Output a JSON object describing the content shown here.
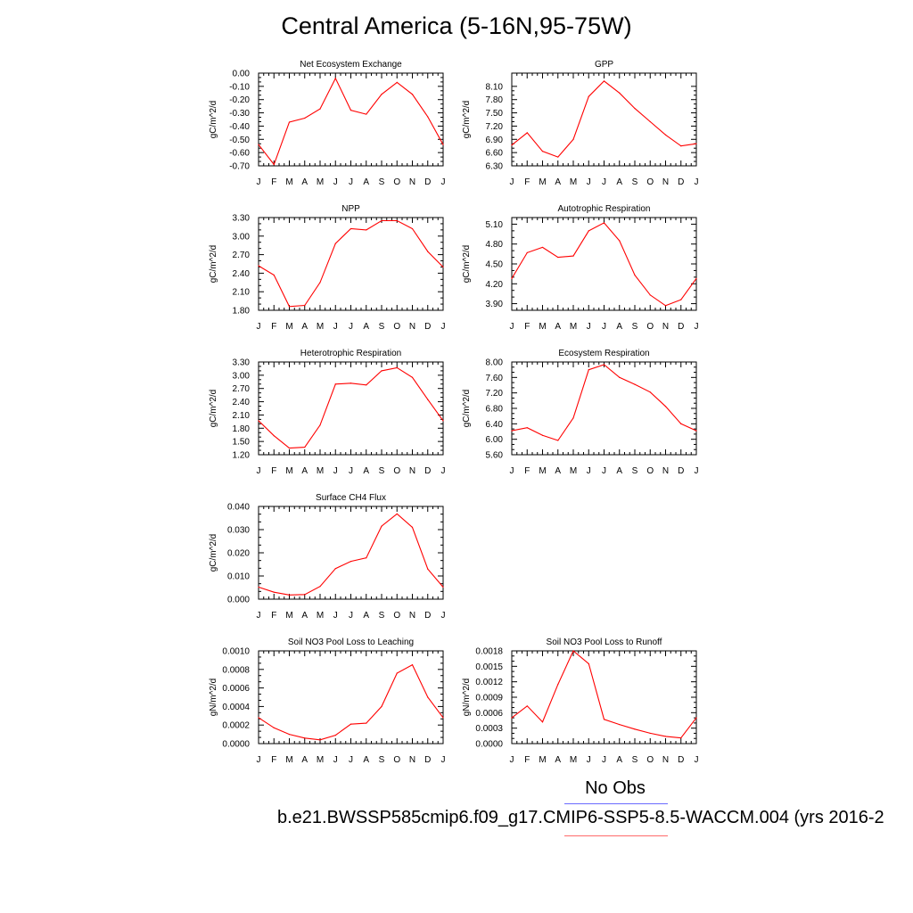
{
  "title": "Central America (5-16N,95-75W)",
  "legend": {
    "obs_label": "No Obs",
    "model_label": "b.e21.BWSSP585cmip6.f09_g17.CMIP6-SSP5-8.5-WACCM.004 (yrs 2016-2",
    "obs_color": "#5a5aff",
    "model_color": "#ff0000"
  },
  "chart_data": [
    {
      "type": "line",
      "title": "Net Ecosystem Exchange",
      "ylabel": "gC/m^2/d",
      "categories": [
        "J",
        "F",
        "M",
        "A",
        "M",
        "J",
        "J",
        "A",
        "S",
        "O",
        "N",
        "D",
        "J"
      ],
      "ylim": [
        -0.7,
        0.0
      ],
      "yticks": [
        "0.00",
        "-0.10",
        "-0.20",
        "-0.30",
        "-0.40",
        "-0.50",
        "-0.60",
        "-0.70"
      ],
      "series": [
        {
          "name": "model",
          "color": "#ff0000",
          "values": [
            -0.54,
            -0.69,
            -0.37,
            -0.34,
            -0.27,
            -0.04,
            -0.28,
            -0.31,
            -0.16,
            -0.07,
            -0.16,
            -0.33,
            -0.54
          ]
        }
      ]
    },
    {
      "type": "line",
      "title": "GPP",
      "ylabel": "gC/m^2/d",
      "categories": [
        "J",
        "F",
        "M",
        "A",
        "M",
        "J",
        "J",
        "A",
        "S",
        "O",
        "N",
        "D",
        "J"
      ],
      "ylim": [
        6.3,
        8.4
      ],
      "yticks": [
        "8.10",
        "7.80",
        "7.50",
        "7.20",
        "6.90",
        "6.60",
        "6.30"
      ],
      "series": [
        {
          "name": "model",
          "color": "#ff0000",
          "values": [
            6.77,
            7.05,
            6.63,
            6.5,
            6.9,
            7.87,
            8.22,
            7.95,
            7.6,
            7.3,
            7.0,
            6.75,
            6.8
          ]
        }
      ]
    },
    {
      "type": "line",
      "title": "NPP",
      "ylabel": "gC/m^2/d",
      "categories": [
        "J",
        "F",
        "M",
        "A",
        "M",
        "J",
        "J",
        "A",
        "S",
        "O",
        "N",
        "D",
        "J"
      ],
      "ylim": [
        1.8,
        3.3
      ],
      "yticks": [
        "3.30",
        "3.00",
        "2.70",
        "2.40",
        "2.10",
        "1.80"
      ],
      "series": [
        {
          "name": "model",
          "color": "#ff0000",
          "values": [
            2.52,
            2.37,
            1.86,
            1.88,
            2.25,
            2.88,
            3.12,
            3.1,
            3.25,
            3.25,
            3.12,
            2.75,
            2.5
          ]
        }
      ]
    },
    {
      "type": "line",
      "title": "Autotrophic Respiration",
      "ylabel": "gC/m^2/d",
      "categories": [
        "J",
        "F",
        "M",
        "A",
        "M",
        "J",
        "J",
        "A",
        "S",
        "O",
        "N",
        "D",
        "J"
      ],
      "ylim": [
        3.8,
        5.2
      ],
      "yticks": [
        "5.10",
        "4.80",
        "4.50",
        "4.20",
        "3.90"
      ],
      "series": [
        {
          "name": "model",
          "color": "#ff0000",
          "values": [
            4.28,
            4.67,
            4.75,
            4.6,
            4.62,
            5.0,
            5.12,
            4.85,
            4.33,
            4.03,
            3.87,
            3.96,
            4.28
          ]
        }
      ]
    },
    {
      "type": "line",
      "title": "Heterotrophic Respiration",
      "ylabel": "gC/m^2/d",
      "categories": [
        "J",
        "F",
        "M",
        "A",
        "M",
        "J",
        "J",
        "A",
        "S",
        "O",
        "N",
        "D",
        "J"
      ],
      "ylim": [
        1.2,
        3.3
      ],
      "yticks": [
        "3.30",
        "3.00",
        "2.70",
        "2.40",
        "2.10",
        "1.80",
        "1.50",
        "1.20"
      ],
      "series": [
        {
          "name": "model",
          "color": "#ff0000",
          "values": [
            1.97,
            1.63,
            1.35,
            1.37,
            1.87,
            2.8,
            2.82,
            2.78,
            3.1,
            3.17,
            2.95,
            2.45,
            1.97
          ]
        }
      ]
    },
    {
      "type": "line",
      "title": "Ecosystem Respiration",
      "ylabel": "gC/m^2/d",
      "categories": [
        "J",
        "F",
        "M",
        "A",
        "M",
        "J",
        "J",
        "A",
        "S",
        "O",
        "N",
        "D",
        "J"
      ],
      "ylim": [
        5.6,
        8.0
      ],
      "yticks": [
        "8.00",
        "7.60",
        "7.20",
        "6.80",
        "6.40",
        "6.00",
        "5.60"
      ],
      "series": [
        {
          "name": "model",
          "color": "#ff0000",
          "values": [
            6.22,
            6.3,
            6.1,
            5.97,
            6.55,
            7.8,
            7.93,
            7.6,
            7.42,
            7.22,
            6.85,
            6.4,
            6.22
          ]
        }
      ]
    },
    {
      "type": "line",
      "title": "Surface CH4 Flux",
      "ylabel": "gC/m^2/d",
      "categories": [
        "J",
        "F",
        "M",
        "A",
        "M",
        "J",
        "J",
        "A",
        "S",
        "O",
        "N",
        "D",
        "J"
      ],
      "ylim": [
        0.0,
        0.04
      ],
      "yticks": [
        "0.040",
        "0.030",
        "0.020",
        "0.010",
        "0.000"
      ],
      "series": [
        {
          "name": "model",
          "color": "#ff0000",
          "values": [
            0.0052,
            0.003,
            0.0018,
            0.002,
            0.0055,
            0.0132,
            0.0163,
            0.0178,
            0.0315,
            0.0368,
            0.031,
            0.013,
            0.0052
          ]
        }
      ]
    },
    {
      "type": "line",
      "title": "Soil NO3 Pool Loss to Leaching",
      "ylabel": "gN/m^2/d",
      "categories": [
        "J",
        "F",
        "M",
        "A",
        "M",
        "J",
        "J",
        "A",
        "S",
        "O",
        "N",
        "D",
        "J"
      ],
      "ylim": [
        0.0,
        0.001
      ],
      "yticks": [
        "0.0010",
        "0.0008",
        "0.0006",
        "0.0004",
        "0.0002",
        "0.0000"
      ],
      "series": [
        {
          "name": "model",
          "color": "#ff0000",
          "values": [
            0.00028,
            0.00017,
            0.0001,
            6e-05,
            4e-05,
            9e-05,
            0.00021,
            0.00022,
            0.0004,
            0.00076,
            0.00085,
            0.0005,
            0.00028
          ]
        }
      ]
    },
    {
      "type": "line",
      "title": "Soil NO3 Pool Loss to Runoff",
      "ylabel": "gN/m^2/d",
      "categories": [
        "J",
        "F",
        "M",
        "A",
        "M",
        "J",
        "J",
        "A",
        "S",
        "O",
        "N",
        "D",
        "J"
      ],
      "ylim": [
        0.0,
        0.0018
      ],
      "yticks": [
        "0.0018",
        "0.0015",
        "0.0012",
        "0.0009",
        "0.0006",
        "0.0003",
        "0.0000"
      ],
      "series": [
        {
          "name": "model",
          "color": "#ff0000",
          "values": [
            0.0005,
            0.00073,
            0.00042,
            0.00115,
            0.0018,
            0.00155,
            0.00047,
            0.00037,
            0.00028,
            0.0002,
            0.00014,
            0.00011,
            0.0005
          ]
        }
      ]
    }
  ]
}
